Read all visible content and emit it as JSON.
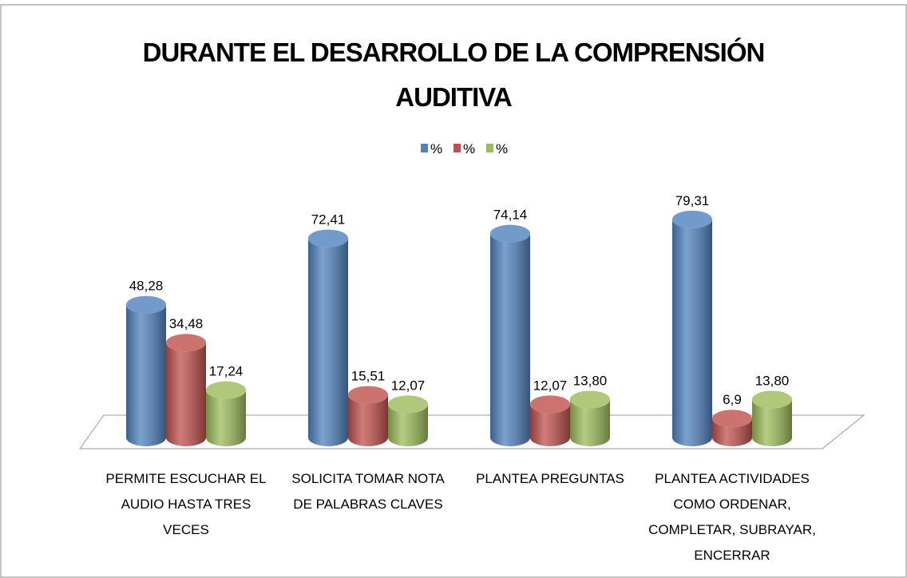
{
  "chart_data": {
    "type": "bar",
    "title": "DURANTE  EL DESARROLLO DE LA COMPRENSIÓN AUDITIVA",
    "categories": [
      "PERMITE ESCUCHAR EL AUDIO HASTA TRES VECES",
      "SOLICITA TOMAR NOTA DE PALABRAS CLAVES",
      "PLANTEA PREGUNTAS",
      "PLANTEA ACTIVIDADES COMO ORDENAR, COMPLETAR, SUBRAYAR, ENCERRAR"
    ],
    "series": [
      {
        "name": "%",
        "color": "#4f81bd",
        "values": [
          48.28,
          72.41,
          74.14,
          79.31
        ],
        "value_labels": [
          "48,28",
          "72,41",
          "74,14",
          "79,31"
        ]
      },
      {
        "name": "%",
        "color": "#c0504d",
        "values": [
          34.48,
          15.51,
          12.07,
          6.9
        ],
        "value_labels": [
          "34,48",
          "15,51",
          "12,07",
          "6,9"
        ]
      },
      {
        "name": "%",
        "color": "#9bbb59",
        "values": [
          17.24,
          12.07,
          13.8,
          13.8
        ],
        "value_labels": [
          "17,24",
          "12,07",
          "13,80",
          "13,80"
        ]
      }
    ],
    "ylim": [
      0,
      90
    ],
    "legend": "top"
  }
}
